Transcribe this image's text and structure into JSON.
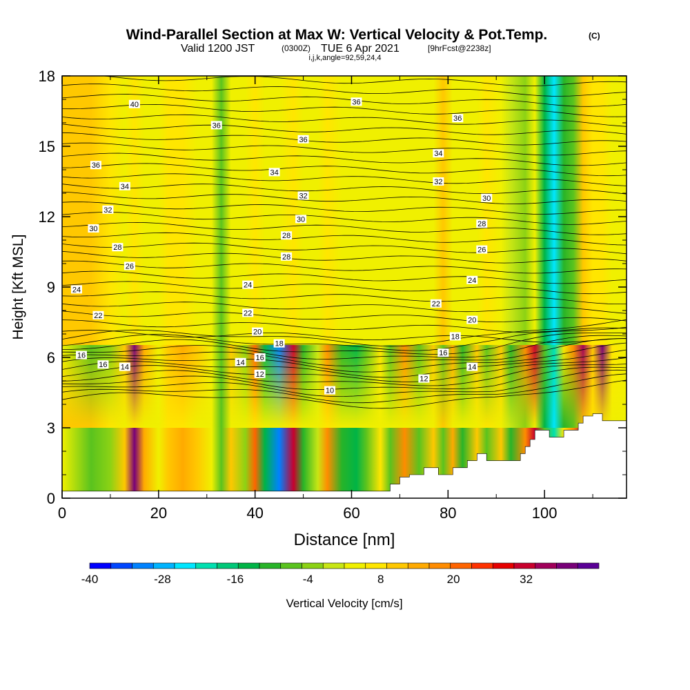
{
  "chart_data": {
    "type": "heatmap",
    "title_main": "Wind-Parallel Section at Max W: Vertical Velocity & Pot.Temp.",
    "title_mark": "(C)",
    "subtitle": {
      "valid": "Valid 1200 JST",
      "utc": "(0300Z)",
      "date": "TUE 6 Apr 2021",
      "forecast": "[9hrFcst@2238z]"
    },
    "subtitle2": "i,j,k,angle=92,59,24,4",
    "xlabel": "Distance [nm]",
    "ylabel": "Height [Kft MSL]",
    "xlim": [
      0,
      117
    ],
    "ylim": [
      0,
      18
    ],
    "x_ticks": [
      "0",
      "20",
      "40",
      "60",
      "80",
      "100"
    ],
    "x_tick_values": [
      0,
      20,
      40,
      60,
      80,
      100
    ],
    "y_ticks": [
      "0",
      "3",
      "6",
      "9",
      "12",
      "15",
      "18"
    ],
    "y_tick_values": [
      0,
      3,
      6,
      9,
      12,
      15,
      18
    ],
    "colorbar": {
      "label": "Vertical Velocity [cm/s]",
      "tick_labels": [
        "-40",
        "-28",
        "-16",
        "-4",
        "8",
        "20",
        "32"
      ],
      "tick_values": [
        -40,
        -28,
        -16,
        -4,
        8,
        20,
        32
      ],
      "range": [
        -40,
        44
      ],
      "colors": [
        "#0000ff",
        "#0046ff",
        "#0082ff",
        "#00b4ff",
        "#00e6ff",
        "#00e0b0",
        "#00c878",
        "#00b446",
        "#28b428",
        "#5ac31e",
        "#8cd214",
        "#c8e614",
        "#f0f000",
        "#ffe600",
        "#ffc800",
        "#ffaa00",
        "#ff8c00",
        "#ff6400",
        "#ff3200",
        "#e60000",
        "#c8002d",
        "#a0005a",
        "#780078",
        "#5a0096"
      ]
    },
    "shading": {
      "x": [
        0,
        6,
        10,
        13,
        15,
        17,
        20,
        22,
        25,
        28,
        31,
        33,
        35,
        38,
        40,
        42,
        45,
        48,
        50,
        53,
        55,
        58,
        61,
        63,
        66,
        68,
        71,
        74,
        77,
        79,
        81,
        83,
        86,
        88,
        91,
        93,
        96,
        98,
        100,
        102,
        104,
        106,
        108,
        110,
        112,
        114,
        117
      ],
      "lower_layer": [
        2,
        -8,
        -4,
        12,
        38,
        14,
        4,
        10,
        14,
        12,
        4,
        -6,
        12,
        -2,
        20,
        -14,
        -30,
        30,
        -10,
        0,
        18,
        -10,
        -14,
        -8,
        8,
        -6,
        16,
        -8,
        12,
        -6,
        14,
        -10,
        12,
        -8,
        10,
        -10,
        16,
        30,
        -6,
        -22,
        6,
        18,
        36,
        10,
        38,
        6,
        4
      ],
      "upper_layer": [
        10,
        12,
        8,
        4,
        6,
        4,
        4,
        6,
        6,
        4,
        2,
        -6,
        2,
        4,
        6,
        2,
        4,
        8,
        2,
        4,
        6,
        2,
        4,
        2,
        4,
        2,
        4,
        2,
        4,
        10,
        2,
        2,
        4,
        6,
        2,
        0,
        -2,
        4,
        -14,
        -24,
        -12,
        -8,
        10,
        8,
        6,
        4,
        4
      ]
    },
    "terrain": {
      "x": [
        0,
        68,
        68,
        70,
        70,
        72,
        72,
        75,
        75,
        78,
        78,
        81,
        81,
        84,
        84,
        86,
        86,
        88,
        88,
        91,
        91,
        95,
        95,
        96,
        96,
        97,
        97,
        98,
        98,
        101,
        101,
        104,
        104,
        107,
        107,
        108,
        108,
        110,
        110,
        112,
        112,
        117
      ],
      "height": [
        0.3,
        0.3,
        0.6,
        0.6,
        0.9,
        0.9,
        1.0,
        1.0,
        1.3,
        1.3,
        1.0,
        1.0,
        1.3,
        1.3,
        1.6,
        1.6,
        1.9,
        1.9,
        1.6,
        1.6,
        1.6,
        1.6,
        1.9,
        1.9,
        2.2,
        2.2,
        2.5,
        2.5,
        2.9,
        2.9,
        2.6,
        2.6,
        2.9,
        2.9,
        3.2,
        3.2,
        3.5,
        3.5,
        3.6,
        3.6,
        3.3,
        3.3
      ]
    },
    "isentropes": {
      "labels": [
        {
          "text": "40",
          "x": 15,
          "y": 16.8
        },
        {
          "text": "36",
          "x": 61,
          "y": 16.9
        },
        {
          "text": "36",
          "x": 82,
          "y": 16.2
        },
        {
          "text": "36",
          "x": 32,
          "y": 15.9
        },
        {
          "text": "36",
          "x": 50,
          "y": 15.3
        },
        {
          "text": "34",
          "x": 78,
          "y": 14.7
        },
        {
          "text": "36",
          "x": 7,
          "y": 14.2
        },
        {
          "text": "34",
          "x": 44,
          "y": 13.9
        },
        {
          "text": "32",
          "x": 78,
          "y": 13.5
        },
        {
          "text": "34",
          "x": 13,
          "y": 13.3
        },
        {
          "text": "32",
          "x": 50,
          "y": 12.9
        },
        {
          "text": "30",
          "x": 88,
          "y": 12.8
        },
        {
          "text": "32",
          "x": 9.5,
          "y": 12.3
        },
        {
          "text": "30",
          "x": 49.5,
          "y": 11.9
        },
        {
          "text": "28",
          "x": 87,
          "y": 11.7
        },
        {
          "text": "30",
          "x": 6.5,
          "y": 11.5
        },
        {
          "text": "28",
          "x": 46.5,
          "y": 11.2
        },
        {
          "text": "28",
          "x": 11.5,
          "y": 10.7
        },
        {
          "text": "26",
          "x": 87,
          "y": 10.6
        },
        {
          "text": "28",
          "x": 46.5,
          "y": 10.3
        },
        {
          "text": "26",
          "x": 14,
          "y": 9.9
        },
        {
          "text": "24",
          "x": 85,
          "y": 9.3
        },
        {
          "text": "24",
          "x": 38.5,
          "y": 9.1
        },
        {
          "text": "24",
          "x": 3,
          "y": 8.9
        },
        {
          "text": "22",
          "x": 77.5,
          "y": 8.3
        },
        {
          "text": "22",
          "x": 38.5,
          "y": 7.9
        },
        {
          "text": "22",
          "x": 7.5,
          "y": 7.8
        },
        {
          "text": "20",
          "x": 85,
          "y": 7.6
        },
        {
          "text": "18",
          "x": 81.5,
          "y": 6.9
        },
        {
          "text": "20",
          "x": 40.5,
          "y": 7.1
        },
        {
          "text": "18",
          "x": 45,
          "y": 6.6
        },
        {
          "text": "16",
          "x": 79,
          "y": 6.2
        },
        {
          "text": "16",
          "x": 4,
          "y": 6.1
        },
        {
          "text": "16",
          "x": 41,
          "y": 6.0
        },
        {
          "text": "14",
          "x": 37,
          "y": 5.8
        },
        {
          "text": "16",
          "x": 8.5,
          "y": 5.7
        },
        {
          "text": "14",
          "x": 85,
          "y": 5.6
        },
        {
          "text": "14",
          "x": 13,
          "y": 5.6
        },
        {
          "text": "12",
          "x": 41,
          "y": 5.3
        },
        {
          "text": "12",
          "x": 75,
          "y": 5.1
        },
        {
          "text": "10",
          "x": 55.5,
          "y": 4.6
        }
      ]
    }
  }
}
